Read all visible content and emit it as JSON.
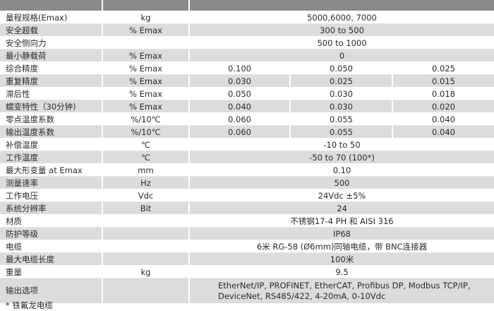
{
  "rows": [
    {
      "label": "量程规格(Emax)",
      "unit": "kg",
      "values": [
        "5000,6000, 7000"
      ]
    },
    {
      "label": "安全超载",
      "unit": "% Emax",
      "values": [
        "300 to 500"
      ]
    },
    {
      "label": "安全侧向力",
      "unit": "",
      "values": [
        "500 to 1000"
      ]
    },
    {
      "label": "最小静载荷",
      "unit": "% Emax",
      "values": [
        "0"
      ]
    },
    {
      "label": "综合精度",
      "unit": "% Emax",
      "values": [
        "0.100",
        "0.050",
        "0.025"
      ]
    },
    {
      "label": "重复精度",
      "unit": "% Emax",
      "values": [
        "0.030",
        "0.025",
        "0.015"
      ]
    },
    {
      "label": "滞后性",
      "unit": "% Emax",
      "values": [
        "0.050",
        "0.030",
        "0.018"
      ]
    },
    {
      "label": "蠕变特性（30分钟)",
      "unit": "% Emax",
      "values": [
        "0.040",
        "0.030",
        "0.020"
      ]
    },
    {
      "label": "零点温度系数",
      "unit": "%/10℃",
      "values": [
        "0.060",
        "0.055",
        "0.040"
      ]
    },
    {
      "label": "输出温度系数",
      "unit": "%/10℃",
      "values": [
        "0.060",
        "0.055",
        "0.040"
      ]
    },
    {
      "label": "补偿温度",
      "unit": "℃",
      "values": [
        "-10 to 50"
      ]
    },
    {
      "label": "工作温度",
      "unit": "℃",
      "values": [
        "-50 to 70 (100*)"
      ]
    },
    {
      "label": "最大形变量 at Emax",
      "unit": "mm",
      "values": [
        "0.10"
      ]
    },
    {
      "label": "测量速率",
      "unit": "Hz",
      "values": [
        "500"
      ]
    },
    {
      "label": "工作电压",
      "unit": "Vdc",
      "values": [
        "24Vdc ±5%"
      ]
    },
    {
      "label": "系统分辨率",
      "unit": "Bit",
      "values": [
        "24"
      ]
    },
    {
      "label": "材质",
      "unit": "",
      "values": [
        "不锈钢17-4 PH 和 AISI 316"
      ]
    },
    {
      "label": "防护等级",
      "unit": "",
      "values": [
        "IP68"
      ]
    },
    {
      "label": "电缆",
      "unit": "",
      "values": [
        "6米 RG-58 (Ø6mm)同轴电缆，带 BNC连接器"
      ]
    },
    {
      "label": "最大电缆长度",
      "unit": "",
      "values": [
        "100米"
      ]
    },
    {
      "label": "重量",
      "unit": "kg",
      "values": [
        "9.5"
      ]
    },
    {
      "label": "输出选项",
      "unit": "",
      "values": [
        "EtherNet/IP, PROFINET, EtherCAT, Profibus DP, Modbus TCP/IP, DeviceNet, RS485/422, 4-20mA, 0-10Vdc"
      ]
    }
  ],
  "footnote": "* 铁氟龙电缆",
  "colors": {
    "header": "#8a8a8a",
    "stripe": "#dcdcdc"
  }
}
